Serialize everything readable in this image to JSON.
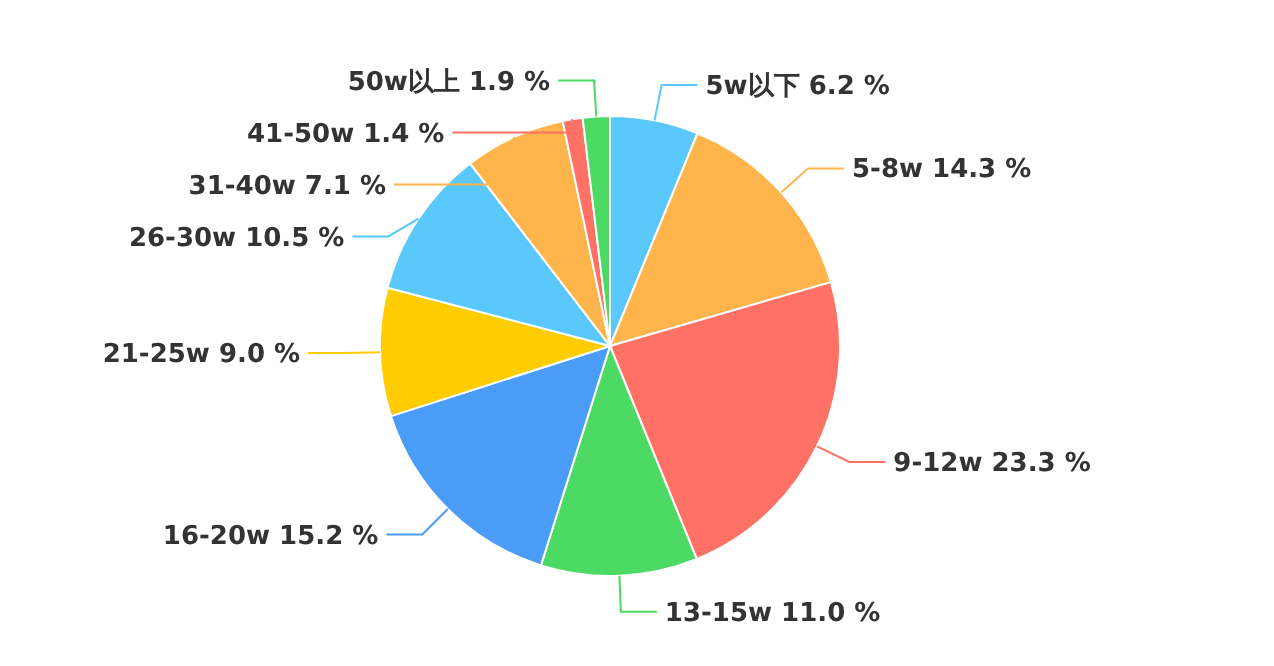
{
  "chart_data": {
    "type": "pie",
    "categories": [
      "5w以下",
      "5-8w",
      "9-12w",
      "13-15w",
      "16-20w",
      "21-25w",
      "26-30w",
      "31-40w",
      "41-50w",
      "50w以上"
    ],
    "values": [
      6.2,
      14.3,
      23.3,
      11.0,
      15.2,
      9.0,
      10.5,
      7.1,
      1.4,
      1.9
    ],
    "colors": [
      "#5ac8fa",
      "#ffb54c",
      "#ff7164",
      "#4cd964",
      "#4a9cf7",
      "#ffcc00",
      "#5ac8fa",
      "#ffb54c",
      "#ff7164",
      "#4cd964"
    ],
    "value_labels": [
      "6.2 %",
      "14.3 %",
      "23.3 %",
      "11.0 %",
      "15.2 %",
      "9.0 %",
      "10.5 %",
      "7.1 %",
      "1.4 %",
      "1.9 %"
    ]
  }
}
